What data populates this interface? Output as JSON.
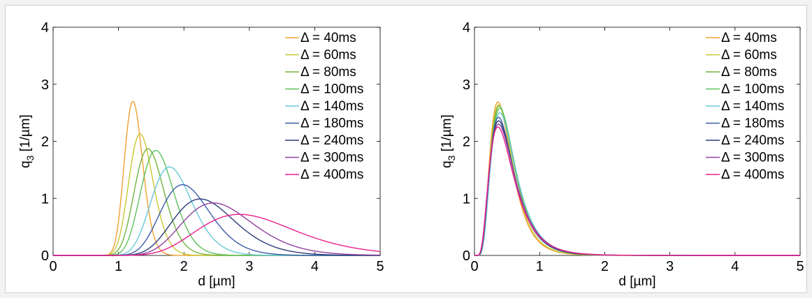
{
  "chart_data": [
    {
      "type": "line",
      "xlabel": "d [µm]",
      "ylabel_main": "q",
      "ylabel_sub": "3",
      "ylabel_unit": " [1/µm]",
      "xlim": [
        0,
        5
      ],
      "ylim": [
        0,
        4
      ],
      "xticks": [
        "0",
        "1",
        "2",
        "3",
        "4",
        "5"
      ],
      "yticks": [
        "0",
        "1",
        "2",
        "3",
        "4"
      ],
      "grid": false,
      "legend_position": "top-right",
      "series": [
        {
          "name": "Δ = 40ms",
          "color": "#f0a030",
          "peak_x": 1.22,
          "peak_y": 2.7,
          "sigma": 0.115
        },
        {
          "name": "Δ = 60ms",
          "color": "#c8c832",
          "peak_x": 1.33,
          "peak_y": 2.13,
          "sigma": 0.14
        },
        {
          "name": "Δ = 80ms",
          "color": "#72b440",
          "peak_x": 1.45,
          "peak_y": 1.87,
          "sigma": 0.155
        },
        {
          "name": "Δ = 100ms",
          "color": "#5cc05c",
          "peak_x": 1.57,
          "peak_y": 1.84,
          "sigma": 0.16
        },
        {
          "name": "Δ = 140ms",
          "color": "#68c8d8",
          "peak_x": 1.78,
          "peak_y": 1.55,
          "sigma": 0.175
        },
        {
          "name": "Δ = 180ms",
          "color": "#3a5ca8",
          "peak_x": 1.98,
          "peak_y": 1.24,
          "sigma": 0.19
        },
        {
          "name": "Δ = 240ms",
          "color": "#2c3c7a",
          "peak_x": 2.25,
          "peak_y": 0.99,
          "sigma": 0.21
        },
        {
          "name": "Δ = 300ms",
          "color": "#9040a0",
          "peak_x": 2.45,
          "peak_y": 0.92,
          "sigma": 0.22
        },
        {
          "name": "Δ = 400ms",
          "color": "#e8208c",
          "peak_x": 2.85,
          "peak_y": 0.72,
          "sigma": 0.26
        }
      ]
    },
    {
      "type": "line",
      "xlabel": "d [µm]",
      "ylabel_main": "q",
      "ylabel_sub": "3",
      "ylabel_unit": " [1/µm]",
      "xlim": [
        0,
        5
      ],
      "ylim": [
        0,
        4
      ],
      "xticks": [
        "0",
        "1",
        "2",
        "3",
        "4",
        "5"
      ],
      "yticks": [
        "0",
        "1",
        "2",
        "3",
        "4"
      ],
      "grid": false,
      "legend_position": "top-right",
      "series": [
        {
          "name": "Δ = 40ms",
          "color": "#f0a030",
          "peak_x": 0.36,
          "peak_y": 2.69,
          "sigma": 0.46
        },
        {
          "name": "Δ = 60ms",
          "color": "#c8c832",
          "peak_x": 0.37,
          "peak_y": 2.64,
          "sigma": 0.46
        },
        {
          "name": "Δ = 80ms",
          "color": "#72b440",
          "peak_x": 0.38,
          "peak_y": 2.62,
          "sigma": 0.47
        },
        {
          "name": "Δ = 100ms",
          "color": "#5cc05c",
          "peak_x": 0.39,
          "peak_y": 2.58,
          "sigma": 0.47
        },
        {
          "name": "Δ = 140ms",
          "color": "#68c8d8",
          "peak_x": 0.39,
          "peak_y": 2.5,
          "sigma": 0.48
        },
        {
          "name": "Δ = 180ms",
          "color": "#3a5ca8",
          "peak_x": 0.37,
          "peak_y": 2.42,
          "sigma": 0.49
        },
        {
          "name": "Δ = 240ms",
          "color": "#2c3c7a",
          "peak_x": 0.37,
          "peak_y": 2.36,
          "sigma": 0.5
        },
        {
          "name": "Δ = 300ms",
          "color": "#9040a0",
          "peak_x": 0.37,
          "peak_y": 2.3,
          "sigma": 0.51
        },
        {
          "name": "Δ = 400ms",
          "color": "#e8208c",
          "peak_x": 0.36,
          "peak_y": 2.25,
          "sigma": 0.52
        }
      ]
    }
  ]
}
